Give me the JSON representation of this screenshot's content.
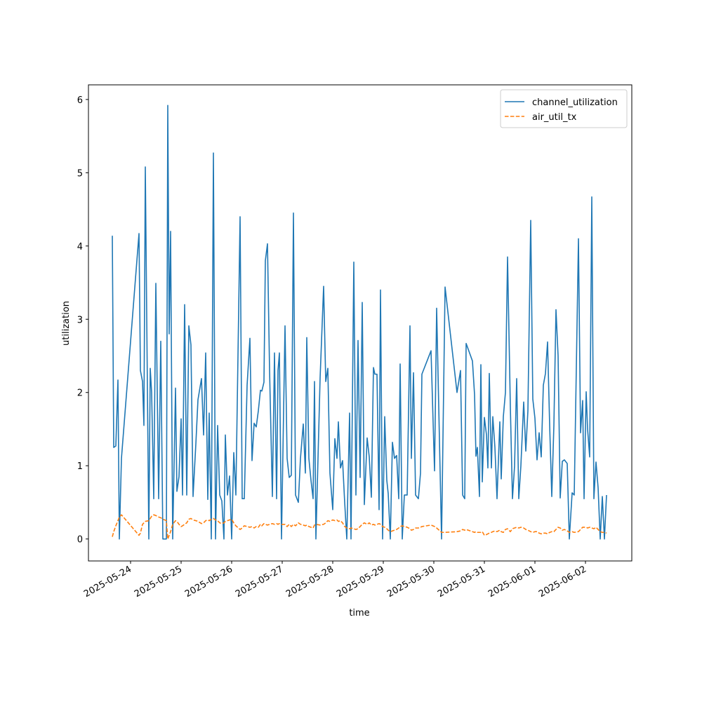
{
  "chart_data": {
    "type": "line",
    "x_label": "time",
    "y_label": "utilization",
    "legend": "upper right",
    "grid": false,
    "xlim": [
      "2025-05-23 04:00",
      "2025-06-02 22:00"
    ],
    "xticks": [
      "2025-05-24",
      "2025-05-25",
      "2025-05-26",
      "2025-05-27",
      "2025-05-28",
      "2025-05-29",
      "2025-05-30",
      "2025-05-31",
      "2025-06-01",
      "2025-06-02"
    ],
    "ylim": [
      -0.3,
      6.2
    ],
    "yticks": [
      0,
      1,
      2,
      3,
      4,
      5,
      6
    ],
    "x": [
      "2025-05-23 15:20",
      "2025-05-23 16:00",
      "2025-05-23 17:00",
      "2025-05-23 18:00",
      "2025-05-23 18:40",
      "2025-05-23 19:40",
      "2025-05-24 04:00",
      "2025-05-24 04:40",
      "2025-05-24 05:40",
      "2025-05-24 06:20",
      "2025-05-24 07:00",
      "2025-05-24 08:40",
      "2025-05-24 09:20",
      "2025-05-24 10:00",
      "2025-05-24 11:00",
      "2025-05-24 12:00",
      "2025-05-24 13:20",
      "2025-05-24 14:20",
      "2025-05-24 15:20",
      "2025-05-24 17:00",
      "2025-05-24 17:40",
      "2025-05-24 18:20",
      "2025-05-24 19:00",
      "2025-05-24 20:00",
      "2025-05-24 21:20",
      "2025-05-24 22:00",
      "2025-05-24 23:00",
      "2025-05-25 00:00",
      "2025-05-25 00:40",
      "2025-05-25 01:40",
      "2025-05-25 02:40",
      "2025-05-25 03:40",
      "2025-05-25 04:40",
      "2025-05-25 05:40",
      "2025-05-25 07:00",
      "2025-05-25 08:00",
      "2025-05-25 09:40",
      "2025-05-25 10:40",
      "2025-05-25 11:40",
      "2025-05-25 12:40",
      "2025-05-25 13:20",
      "2025-05-25 14:20",
      "2025-05-25 15:20",
      "2025-05-25 16:20",
      "2025-05-25 17:20",
      "2025-05-25 18:20",
      "2025-05-25 19:20",
      "2025-05-25 20:20",
      "2025-05-25 21:00",
      "2025-05-25 22:00",
      "2025-05-25 23:00",
      "2025-05-26 00:00",
      "2025-05-26 01:00",
      "2025-05-26 02:00",
      "2025-05-26 04:00",
      "2025-05-26 05:00",
      "2025-05-26 06:00",
      "2025-05-26 07:20",
      "2025-05-26 08:40",
      "2025-05-26 09:40",
      "2025-05-26 10:40",
      "2025-05-26 11:40",
      "2025-05-26 12:40",
      "2025-05-26 13:40",
      "2025-05-26 14:20",
      "2025-05-26 15:20",
      "2025-05-26 16:00",
      "2025-05-26 17:00",
      "2025-05-26 18:00",
      "2025-05-26 19:20",
      "2025-05-26 20:20",
      "2025-05-26 21:20",
      "2025-05-26 22:00",
      "2025-05-26 22:40",
      "2025-05-26 23:40",
      "2025-05-27 01:20",
      "2025-05-27 02:20",
      "2025-05-27 03:20",
      "2025-05-27 04:20",
      "2025-05-27 05:20",
      "2025-05-27 06:20",
      "2025-05-27 07:40",
      "2025-05-27 08:40",
      "2025-05-27 10:00",
      "2025-05-27 11:00",
      "2025-05-27 11:40",
      "2025-05-27 12:40",
      "2025-05-27 13:40",
      "2025-05-27 14:40",
      "2025-05-27 15:20",
      "2025-05-27 16:00",
      "2025-05-27 18:00",
      "2025-05-27 19:40",
      "2025-05-27 20:40",
      "2025-05-27 21:40",
      "2025-05-27 22:40",
      "2025-05-28 00:00",
      "2025-05-28 01:00",
      "2025-05-28 02:00",
      "2025-05-28 02:40",
      "2025-05-28 03:40",
      "2025-05-28 04:40",
      "2025-05-28 05:40",
      "2025-05-28 06:40",
      "2025-05-28 08:00",
      "2025-05-28 08:40",
      "2025-05-28 10:00",
      "2025-05-28 11:00",
      "2025-05-28 12:00",
      "2025-05-28 13:00",
      "2025-05-28 14:00",
      "2025-05-28 15:00",
      "2025-05-28 16:20",
      "2025-05-28 17:20",
      "2025-05-28 18:20",
      "2025-05-28 19:20",
      "2025-05-28 20:00",
      "2025-05-28 21:00",
      "2025-05-28 22:00",
      "2025-05-28 22:40",
      "2025-05-28 23:40",
      "2025-05-29 00:40",
      "2025-05-29 01:40",
      "2025-05-29 02:20",
      "2025-05-29 03:20",
      "2025-05-29 04:20",
      "2025-05-29 05:20",
      "2025-05-29 06:20",
      "2025-05-29 07:20",
      "2025-05-29 08:00",
      "2025-05-29 09:00",
      "2025-05-29 10:00",
      "2025-05-29 11:20",
      "2025-05-29 12:40",
      "2025-05-29 13:20",
      "2025-05-29 14:20",
      "2025-05-29 15:20",
      "2025-05-29 16:40",
      "2025-05-29 17:40",
      "2025-05-29 18:20",
      "2025-05-29 22:40",
      "2025-05-30 00:20",
      "2025-05-30 01:20",
      "2025-05-30 03:40",
      "2025-05-30 05:20",
      "2025-05-30 11:00",
      "2025-05-30 12:40",
      "2025-05-30 13:40",
      "2025-05-30 14:40",
      "2025-05-30 15:20",
      "2025-05-30 18:20",
      "2025-05-30 19:20",
      "2025-05-30 20:00",
      "2025-05-30 20:40",
      "2025-05-30 21:40",
      "2025-05-30 22:20",
      "2025-05-30 23:00",
      "2025-05-31 00:00",
      "2025-05-31 01:00",
      "2025-05-31 01:40",
      "2025-05-31 02:20",
      "2025-05-31 03:20",
      "2025-05-31 04:00",
      "2025-05-31 05:00",
      "2025-05-31 06:00",
      "2025-05-31 07:20",
      "2025-05-31 08:00",
      "2025-05-31 09:00",
      "2025-05-31 10:00",
      "2025-05-31 11:00",
      "2025-05-31 12:20",
      "2025-05-31 13:20",
      "2025-05-31 14:20",
      "2025-05-31 15:20",
      "2025-05-31 16:20",
      "2025-05-31 17:20",
      "2025-05-31 18:40",
      "2025-05-31 19:40",
      "2025-05-31 20:40",
      "2025-05-31 22:00",
      "2025-05-31 23:00",
      "2025-06-01 00:00",
      "2025-06-01 01:00",
      "2025-06-01 02:00",
      "2025-06-01 03:00",
      "2025-06-01 04:00",
      "2025-06-01 05:00",
      "2025-06-01 06:00",
      "2025-06-01 07:00",
      "2025-06-01 08:00",
      "2025-06-01 09:00",
      "2025-06-01 10:00",
      "2025-06-01 11:00",
      "2025-06-01 12:00",
      "2025-06-01 13:00",
      "2025-06-01 14:00",
      "2025-06-01 15:20",
      "2025-06-01 16:20",
      "2025-06-01 17:40",
      "2025-06-01 18:40",
      "2025-06-01 20:40",
      "2025-06-01 21:40",
      "2025-06-01 22:40",
      "2025-06-01 23:20",
      "2025-06-02 00:20",
      "2025-06-02 01:00",
      "2025-06-02 02:00",
      "2025-06-02 03:00",
      "2025-06-02 04:00",
      "2025-06-02 05:00",
      "2025-06-02 06:00",
      "2025-06-02 07:00",
      "2025-06-02 08:00",
      "2025-06-02 09:00",
      "2025-06-02 10:00"
    ],
    "series": [
      {
        "name": "channel_utilization",
        "color": "#1f77b4",
        "dash": false,
        "values": [
          4.14,
          1.25,
          1.27,
          2.17,
          0.0,
          1.1,
          4.17,
          2.3,
          2.15,
          1.55,
          5.08,
          0.0,
          2.33,
          2.0,
          0.55,
          3.49,
          0.55,
          2.7,
          0.0,
          0.0,
          5.92,
          2.8,
          4.2,
          0.0,
          2.06,
          0.65,
          0.85,
          1.64,
          0.6,
          3.2,
          0.6,
          2.91,
          2.65,
          0.58,
          1.3,
          1.9,
          2.19,
          1.42,
          2.54,
          0.54,
          1.72,
          0.0,
          5.27,
          0.0,
          1.55,
          0.6,
          0.52,
          0.0,
          1.42,
          0.6,
          0.86,
          0.0,
          1.18,
          0.6,
          4.4,
          0.55,
          0.55,
          2.1,
          2.74,
          1.07,
          1.58,
          1.53,
          1.75,
          2.03,
          2.02,
          2.14,
          3.8,
          4.03,
          2.3,
          0.58,
          2.54,
          0.55,
          2.3,
          2.54,
          0.0,
          2.91,
          1.1,
          0.84,
          0.87,
          4.45,
          0.6,
          0.5,
          1.1,
          1.57,
          0.9,
          2.75,
          1.1,
          0.8,
          0.55,
          2.15,
          0.0,
          2.2,
          3.45,
          2.15,
          2.33,
          0.9,
          0.4,
          1.37,
          1.1,
          1.6,
          0.97,
          1.07,
          0.5,
          0.0,
          1.72,
          0.0,
          3.78,
          0.6,
          2.71,
          0.84,
          3.23,
          0.47,
          1.38,
          1.12,
          0.57,
          2.34,
          2.25,
          2.25,
          0.4,
          3.4,
          0.0,
          1.67,
          0.8,
          0.62,
          0.0,
          1.32,
          1.1,
          1.14,
          0.55,
          2.39,
          0.0,
          0.6,
          0.6,
          2.91,
          1.1,
          2.27,
          0.6,
          0.55,
          0.9,
          2.25,
          2.57,
          0.93,
          3.15,
          0.0,
          3.44,
          2.0,
          2.3,
          0.6,
          0.55,
          2.67,
          2.43,
          1.97,
          1.13,
          1.25,
          0.58,
          2.38,
          0.78,
          1.66,
          1.42,
          0.97,
          2.26,
          0.97,
          1.67,
          1.25,
          0.55,
          1.6,
          0.82,
          1.67,
          2.0,
          3.85,
          1.8,
          0.55,
          1.0,
          2.19,
          0.55,
          1.0,
          1.87,
          1.2,
          1.75,
          4.35,
          1.91,
          1.65,
          1.08,
          1.45,
          1.12,
          2.1,
          2.26,
          2.69,
          1.55,
          0.58,
          1.55,
          3.13,
          2.5,
          0.56,
          1.06,
          1.08,
          1.03,
          0.0,
          0.63,
          0.6,
          4.1,
          1.45,
          1.89,
          0.55,
          2.01,
          1.5,
          1.12,
          4.67,
          0.55,
          1.05,
          0.7,
          0.0,
          0.58,
          0.0,
          0.6
        ]
      },
      {
        "name": "air_util_tx",
        "color": "#ff7f0e",
        "dash": true,
        "values": [
          0.03,
          0.1,
          0.18,
          0.25,
          0.3,
          0.33,
          0.05,
          0.08,
          0.2,
          0.22,
          0.24,
          0.25,
          0.28,
          0.31,
          0.33,
          0.32,
          0.3,
          0.29,
          0.27,
          0.25,
          0.0,
          0.05,
          0.1,
          0.2,
          0.25,
          0.24,
          0.2,
          0.17,
          0.18,
          0.2,
          0.22,
          0.27,
          0.28,
          0.26,
          0.25,
          0.24,
          0.21,
          0.22,
          0.25,
          0.26,
          0.25,
          0.27,
          0.28,
          0.26,
          0.25,
          0.22,
          0.21,
          0.22,
          0.24,
          0.25,
          0.26,
          0.27,
          0.22,
          0.18,
          0.13,
          0.15,
          0.18,
          0.17,
          0.16,
          0.17,
          0.15,
          0.17,
          0.16,
          0.2,
          0.18,
          0.21,
          0.2,
          0.19,
          0.2,
          0.21,
          0.2,
          0.21,
          0.2,
          0.21,
          0.2,
          0.2,
          0.17,
          0.2,
          0.17,
          0.2,
          0.18,
          0.22,
          0.2,
          0.19,
          0.18,
          0.19,
          0.17,
          0.16,
          0.15,
          0.19,
          0.2,
          0.19,
          0.2,
          0.22,
          0.25,
          0.24,
          0.26,
          0.25,
          0.26,
          0.24,
          0.25,
          0.22,
          0.17,
          0.15,
          0.14,
          0.15,
          0.14,
          0.13,
          0.14,
          0.17,
          0.2,
          0.22,
          0.2,
          0.22,
          0.19,
          0.2,
          0.19,
          0.2,
          0.21,
          0.2,
          0.17,
          0.16,
          0.14,
          0.12,
          0.1,
          0.11,
          0.12,
          0.13,
          0.15,
          0.17,
          0.18,
          0.17,
          0.16,
          0.14,
          0.12,
          0.13,
          0.15,
          0.15,
          0.16,
          0.17,
          0.19,
          0.17,
          0.15,
          0.09,
          0.09,
          0.1,
          0.11,
          0.13,
          0.12,
          0.13,
          0.1,
          0.09,
          0.1,
          0.09,
          0.09,
          0.09,
          0.1,
          0.05,
          0.06,
          0.07,
          0.08,
          0.09,
          0.1,
          0.11,
          0.1,
          0.12,
          0.1,
          0.09,
          0.13,
          0.14,
          0.1,
          0.14,
          0.15,
          0.16,
          0.15,
          0.16,
          0.15,
          0.13,
          0.12,
          0.1,
          0.09,
          0.1,
          0.1,
          0.08,
          0.07,
          0.08,
          0.08,
          0.07,
          0.09,
          0.1,
          0.1,
          0.13,
          0.16,
          0.15,
          0.12,
          0.13,
          0.11,
          0.09,
          0.1,
          0.09,
          0.1,
          0.13,
          0.16,
          0.16,
          0.16,
          0.15,
          0.16,
          0.15,
          0.14,
          0.16,
          0.13,
          0.1,
          0.09,
          0.09,
          0.08
        ]
      }
    ]
  }
}
